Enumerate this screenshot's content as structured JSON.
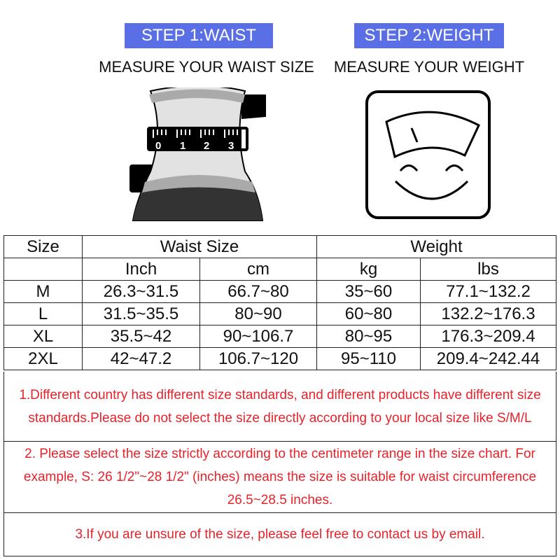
{
  "steps": [
    {
      "badge": "STEP 1:WAIST",
      "caption": "MEASURE YOUR WAIST SIZE",
      "icon": "waist-tape-measure-icon"
    },
    {
      "badge": "STEP 2:WEIGHT",
      "caption": "MEASURE YOUR WEIGHT",
      "icon": "smiling-scale-icon"
    }
  ],
  "ruler_digits": [
    "0",
    "1",
    "2",
    "3"
  ],
  "colors": {
    "badge": "#5a6ee6",
    "notes": "#e8222a"
  },
  "table": {
    "header": {
      "size": "Size",
      "waist": "Waist Size",
      "weight": "Weight"
    },
    "units": [
      "Inch",
      "cm",
      "kg",
      "lbs"
    ],
    "rows": [
      [
        "M",
        "26.3~31.5",
        "66.7~80",
        "35~60",
        "77.1~132.2"
      ],
      [
        "L",
        "31.5~35.5",
        "80~90",
        "60~80",
        "132.2~176.3"
      ],
      [
        "XL",
        "35.5~42",
        "90~106.7",
        "80~95",
        "176.3~209.4"
      ],
      [
        "2XL",
        "42~47.2",
        "106.7~120",
        "95~110",
        "209.4~242.44"
      ]
    ]
  },
  "notes": [
    "1.Different country has different size standards, and different products have different size standards.Please do not select the size directly according to your local size like S/M/L",
    "2. Please select the size strictly according to the centimeter range in the size chart. For example, S: 26 1/2\"~28 1/2\" (inches) means the size is suitable for waist circumference 26.5~28.5 inches.",
    "3.If you are unsure of the size, please feel free to contact us by email."
  ]
}
